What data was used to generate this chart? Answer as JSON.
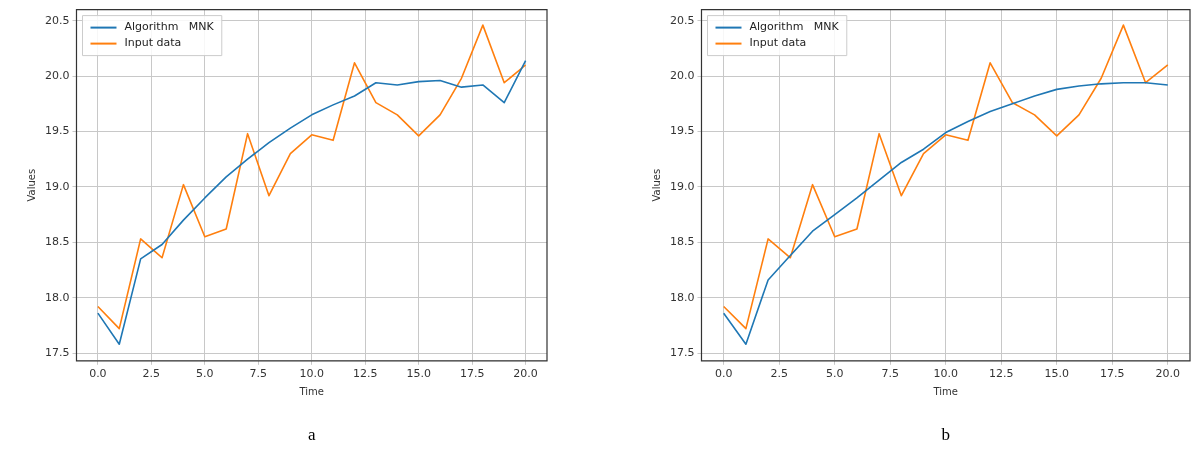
{
  "chart_data": [
    {
      "type": "line",
      "xlabel": "Time",
      "ylabel": "Values",
      "x": [
        0,
        1,
        2,
        3,
        4,
        5,
        6,
        7,
        8,
        9,
        10,
        11,
        12,
        13,
        14,
        15,
        16,
        17,
        18,
        19,
        20
      ],
      "xlim": [
        -1,
        21
      ],
      "ylim": [
        17.43,
        20.6
      ],
      "xticks": [
        {
          "value": 0,
          "label": "0.0"
        },
        2.5,
        {
          "value": 5,
          "label": "5.0"
        },
        7.5,
        {
          "value": 10,
          "label": "10.0"
        },
        12.5,
        {
          "value": 15,
          "label": "15.0"
        },
        17.5,
        {
          "value": 20,
          "label": "20.0"
        }
      ],
      "yticks": [
        17.5,
        {
          "value": 18,
          "label": "18.0"
        },
        18.5,
        {
          "value": 19,
          "label": "19.0"
        },
        19.5,
        {
          "value": 20,
          "label": "20.0"
        },
        20.5
      ],
      "grid": true,
      "legend": "top left",
      "annotations": [
        "a"
      ],
      "series": [
        {
          "name": "Algorithm   MNK",
          "color": "#1f77b4",
          "values": [
            17.86,
            17.58,
            18.35,
            18.48,
            18.7,
            18.9,
            19.09,
            19.25,
            19.4,
            19.53,
            19.65,
            19.74,
            19.82,
            19.94,
            19.92,
            19.95,
            19.96,
            19.9,
            19.92,
            19.76,
            20.14
          ]
        },
        {
          "name": "Input data",
          "color": "#ff7f0e",
          "values": [
            17.92,
            17.72,
            18.53,
            18.36,
            19.02,
            18.55,
            18.62,
            19.48,
            18.92,
            19.3,
            19.47,
            19.42,
            20.12,
            19.76,
            19.65,
            19.46,
            19.65,
            19.98,
            20.46,
            19.94,
            20.1
          ]
        }
      ]
    },
    {
      "type": "line",
      "xlabel": "Time",
      "ylabel": "Values",
      "x": [
        0,
        1,
        2,
        3,
        4,
        5,
        6,
        7,
        8,
        9,
        10,
        11,
        12,
        13,
        14,
        15,
        16,
        17,
        18,
        19,
        20
      ],
      "xlim": [
        -1,
        21
      ],
      "ylim": [
        17.43,
        20.6
      ],
      "xticks": [
        {
          "value": 0,
          "label": "0.0"
        },
        2.5,
        {
          "value": 5,
          "label": "5.0"
        },
        7.5,
        {
          "value": 10,
          "label": "10.0"
        },
        12.5,
        {
          "value": 15,
          "label": "15.0"
        },
        17.5,
        {
          "value": 20,
          "label": "20.0"
        }
      ],
      "yticks": [
        17.5,
        {
          "value": 18,
          "label": "18.0"
        },
        18.5,
        {
          "value": 19,
          "label": "19.0"
        },
        19.5,
        {
          "value": 20,
          "label": "20.0"
        },
        20.5
      ],
      "grid": true,
      "legend": "top left",
      "annotations": [
        "b"
      ],
      "series": [
        {
          "name": "Algorithm   MNK",
          "color": "#1f77b4",
          "values": [
            17.86,
            17.58,
            18.16,
            18.38,
            18.6,
            18.75,
            18.9,
            19.06,
            19.22,
            19.34,
            19.49,
            19.59,
            19.68,
            19.75,
            19.82,
            19.88,
            19.91,
            19.93,
            19.94,
            19.94,
            19.92
          ]
        },
        {
          "name": "Input data",
          "color": "#ff7f0e",
          "values": [
            17.92,
            17.72,
            18.53,
            18.36,
            19.02,
            18.55,
            18.62,
            19.48,
            18.92,
            19.3,
            19.47,
            19.42,
            20.12,
            19.76,
            19.65,
            19.46,
            19.65,
            19.98,
            20.46,
            19.94,
            20.1
          ]
        }
      ]
    }
  ]
}
